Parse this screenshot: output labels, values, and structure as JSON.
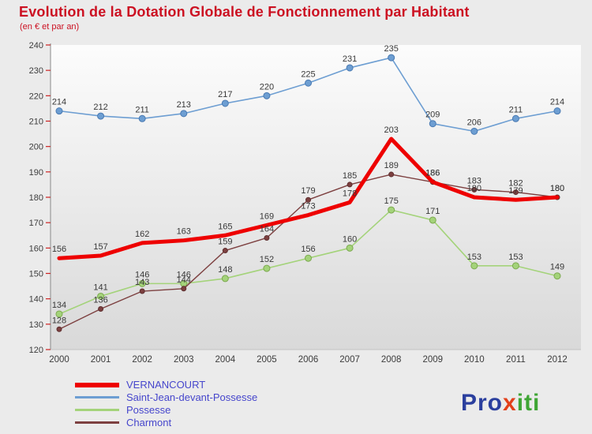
{
  "title": "Evolution de la Dotation Globale de Fonctionnement par Habitant",
  "subtitle": "(en € et par an)",
  "chart_data": {
    "type": "line",
    "x": [
      2000,
      2001,
      2002,
      2003,
      2004,
      2005,
      2006,
      2007,
      2008,
      2009,
      2010,
      2011,
      2012
    ],
    "ylim": [
      120,
      240
    ],
    "ytick_step": 10,
    "grid": false,
    "legend_position": "bottom-left",
    "series": [
      {
        "name": "VERNANCOURT",
        "color": "#ee0000",
        "width": 5,
        "marker": false,
        "marker_r": 0,
        "marker_stroke": "#ee0000",
        "values": [
          156,
          157,
          162,
          163,
          165,
          169,
          173,
          178,
          203,
          186,
          180,
          179,
          180
        ]
      },
      {
        "name": "Saint-Jean-devant-Possesse",
        "color": "#6d9ed2",
        "width": 1.6,
        "marker": true,
        "marker_r": 4,
        "marker_stroke": "#4a7ab2",
        "values": [
          214,
          212,
          211,
          213,
          217,
          220,
          225,
          231,
          235,
          209,
          206,
          211,
          214
        ]
      },
      {
        "name": "Possesse",
        "color": "#a4d37a",
        "width": 1.6,
        "marker": true,
        "marker_r": 4,
        "marker_stroke": "#7ca94f",
        "values": [
          134,
          141,
          146,
          146,
          148,
          152,
          156,
          160,
          175,
          171,
          153,
          153,
          149
        ]
      },
      {
        "name": "Charmont",
        "color": "#7d4040",
        "width": 1.4,
        "marker": true,
        "marker_r": 3,
        "marker_stroke": "#5e2f2f",
        "values": [
          128,
          136,
          143,
          144,
          159,
          164,
          179,
          185,
          189,
          186,
          183,
          182,
          180
        ]
      }
    ]
  },
  "axis": {
    "tick_color": "#cc2222",
    "label_color": "#3c3c3c",
    "axis_line_color": "#8a8a8a",
    "value_label_color": "#383838"
  },
  "legend": {
    "text_color": "#4646cc"
  },
  "logo": {
    "parts": [
      {
        "text": "Pro",
        "color": "#2b3f9e"
      },
      {
        "text": "x",
        "color": "#e2401b"
      },
      {
        "text": "iti",
        "color": "#3fa535"
      }
    ]
  }
}
